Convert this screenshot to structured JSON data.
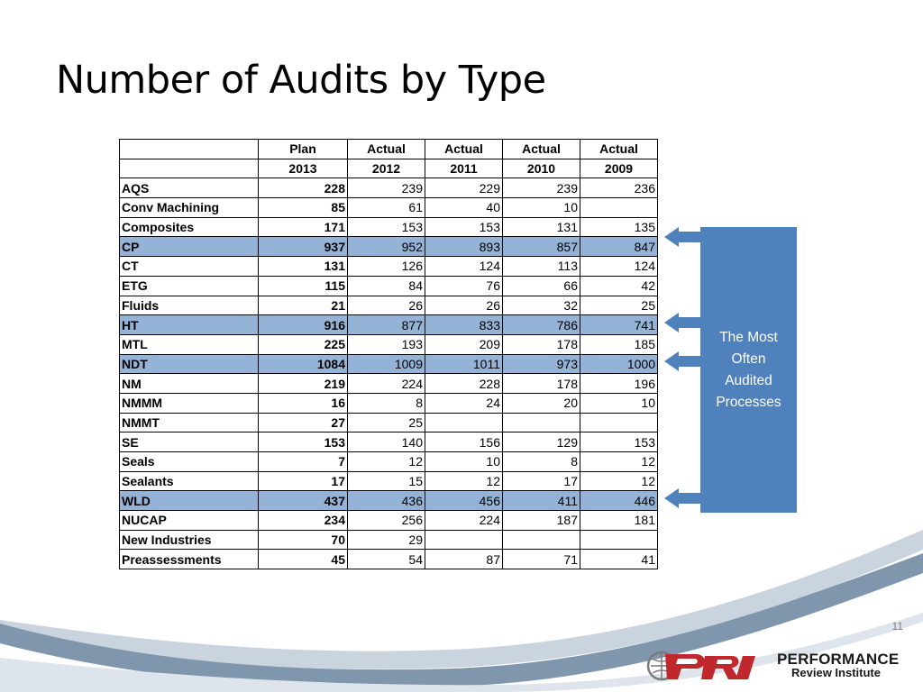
{
  "slide": {
    "title": "Number of Audits by Type",
    "page_number": "11"
  },
  "table": {
    "header_row1": [
      "",
      "Plan",
      "Actual",
      "Actual",
      "Actual",
      "Actual"
    ],
    "header_row2": [
      "",
      "2013",
      "2012",
      "2011",
      "2010",
      "2009"
    ],
    "rows": [
      {
        "name": "AQS",
        "plan": "228",
        "a2012": "239",
        "a2011": "229",
        "a2010": "239",
        "a2009": "236",
        "highlight": false
      },
      {
        "name": "Conv Machining",
        "plan": "85",
        "a2012": "61",
        "a2011": "40",
        "a2010": "10",
        "a2009": "",
        "highlight": false
      },
      {
        "name": "Composites",
        "plan": "171",
        "a2012": "153",
        "a2011": "153",
        "a2010": "131",
        "a2009": "135",
        "highlight": false
      },
      {
        "name": "CP",
        "plan": "937",
        "a2012": "952",
        "a2011": "893",
        "a2010": "857",
        "a2009": "847",
        "highlight": true
      },
      {
        "name": "CT",
        "plan": "131",
        "a2012": "126",
        "a2011": "124",
        "a2010": "113",
        "a2009": "124",
        "highlight": false
      },
      {
        "name": "ETG",
        "plan": "115",
        "a2012": "84",
        "a2011": "76",
        "a2010": "66",
        "a2009": "42",
        "highlight": false
      },
      {
        "name": "Fluids",
        "plan": "21",
        "a2012": "26",
        "a2011": "26",
        "a2010": "32",
        "a2009": "25",
        "highlight": false
      },
      {
        "name": "HT",
        "plan": "916",
        "a2012": "877",
        "a2011": "833",
        "a2010": "786",
        "a2009": "741",
        "highlight": true
      },
      {
        "name": "MTL",
        "plan": "225",
        "a2012": "193",
        "a2011": "209",
        "a2010": "178",
        "a2009": "185",
        "highlight": false
      },
      {
        "name": "NDT",
        "plan": "1084",
        "a2012": "1009",
        "a2011": "1011",
        "a2010": "973",
        "a2009": "1000",
        "highlight": true
      },
      {
        "name": "NM",
        "plan": "219",
        "a2012": "224",
        "a2011": "228",
        "a2010": "178",
        "a2009": "196",
        "highlight": false
      },
      {
        "name": "NMMM",
        "plan": "16",
        "a2012": "8",
        "a2011": "24",
        "a2010": "20",
        "a2009": "10",
        "highlight": false
      },
      {
        "name": "NMMT",
        "plan": "27",
        "a2012": "25",
        "a2011": "",
        "a2010": "",
        "a2009": "",
        "highlight": false
      },
      {
        "name": "SE",
        "plan": "153",
        "a2012": "140",
        "a2011": "156",
        "a2010": "129",
        "a2009": "153",
        "highlight": false
      },
      {
        "name": "Seals",
        "plan": "7",
        "a2012": "12",
        "a2011": "10",
        "a2010": "8",
        "a2009": "12",
        "highlight": false
      },
      {
        "name": "Sealants",
        "plan": "17",
        "a2012": "15",
        "a2011": "12",
        "a2010": "17",
        "a2009": "12",
        "highlight": false
      },
      {
        "name": "WLD",
        "plan": "437",
        "a2012": "436",
        "a2011": "456",
        "a2010": "411",
        "a2009": "446",
        "highlight": true
      },
      {
        "name": "NUCAP",
        "plan": "234",
        "a2012": "256",
        "a2011": "224",
        "a2010": "187",
        "a2009": "181",
        "highlight": false
      },
      {
        "name": "New Industries",
        "plan": "70",
        "a2012": "29",
        "a2011": "",
        "a2010": "",
        "a2009": "",
        "highlight": false
      },
      {
        "name": "Preassessments",
        "plan": "45",
        "a2012": "54",
        "a2011": "87",
        "a2010": "71",
        "a2009": "41",
        "highlight": false
      }
    ]
  },
  "callout": {
    "lines": [
      "The Most",
      "Often",
      "Audited",
      "Processes"
    ],
    "color": "#4f81bd",
    "arrows_to": [
      "CP",
      "HT",
      "NDT",
      "WLD"
    ]
  },
  "colors": {
    "row_highlight": "#95b3d7",
    "callout_fill": "#4f81bd",
    "wave_dark": "#7f96ad",
    "wave_light": "#c9d4df",
    "logo_red": "#c0282d"
  },
  "logo": {
    "mark": "pri",
    "name_line1": "PERFORMANCE",
    "name_line2": "Review Institute"
  }
}
